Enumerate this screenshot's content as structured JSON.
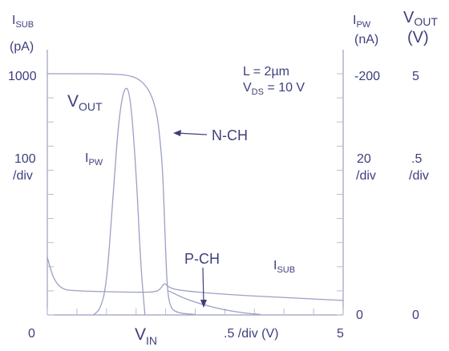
{
  "chart_data": {
    "type": "line",
    "x": {
      "label_main": "V",
      "label_sub": "IN",
      "range": [
        0,
        5
      ],
      "unit_text": ".5 /div (V)",
      "left_tick": "0",
      "right_tick": "5"
    },
    "left_axis": {
      "label": "I",
      "label_sub": "SUB",
      "unit": "(pA)",
      "top_tick": "1000",
      "scale_value": "100",
      "scale_unit": "/div",
      "range": [
        0,
        1000
      ]
    },
    "right_axis_1": {
      "label": "I",
      "label_sub": "PW",
      "unit": "(nA)",
      "top_tick": "-200",
      "scale_value": "20",
      "scale_unit": "/div",
      "bottom_tick": "0",
      "range": [
        0,
        -200
      ]
    },
    "right_axis_2": {
      "label": "V",
      "label_sub": "OUT",
      "unit": "(V)",
      "top_tick": "5",
      "scale_value": ".5",
      "scale_unit": "/div",
      "bottom_tick": "0",
      "range": [
        0,
        5
      ]
    },
    "conditions": {
      "line1": "L = 2µm",
      "line2_main": "V",
      "line2_sub": "DS",
      "line2_rest": " = 10 V"
    },
    "curve_labels": {
      "vout_main": "V",
      "vout_sub": "OUT",
      "ipw_main": "I",
      "ipw_sub": "PW",
      "isub_main": "I",
      "isub_sub": "SUB",
      "nch": "N-CH",
      "pch": "P-CH"
    },
    "series": [
      {
        "name": "VOUT",
        "axis": "right_axis_2",
        "points": [
          [
            0,
            5
          ],
          [
            1,
            5
          ],
          [
            1.4,
            4.97
          ],
          [
            1.6,
            4.85
          ],
          [
            1.75,
            4.6
          ],
          [
            1.85,
            4.2
          ],
          [
            1.9,
            3.7
          ],
          [
            1.95,
            3.0
          ],
          [
            1.98,
            2.0
          ],
          [
            2.0,
            1.3
          ],
          [
            2.03,
            0.5
          ],
          [
            2.08,
            0.15
          ],
          [
            2.2,
            0.04
          ],
          [
            2.5,
            0.01
          ]
        ]
      },
      {
        "name": "IPW",
        "axis": "right_axis_1",
        "points": [
          [
            0.78,
            0
          ],
          [
            0.9,
            -5
          ],
          [
            1.0,
            -25
          ],
          [
            1.1,
            -90
          ],
          [
            1.2,
            -160
          ],
          [
            1.3,
            -190
          ],
          [
            1.4,
            -185
          ],
          [
            1.5,
            -120
          ],
          [
            1.58,
            -40
          ],
          [
            1.65,
            0
          ]
        ]
      },
      {
        "name": "ISUB (N-CH)",
        "axis": "left_axis",
        "points": [
          [
            0,
            240
          ],
          [
            0.1,
            150
          ],
          [
            0.25,
            105
          ],
          [
            0.5,
            100
          ],
          [
            1.0,
            96
          ],
          [
            1.5,
            94
          ],
          [
            1.8,
            95
          ],
          [
            1.9,
            103
          ],
          [
            1.98,
            135
          ],
          [
            2.05,
            115
          ],
          [
            2.2,
            102
          ],
          [
            3,
            85
          ],
          [
            4,
            72
          ],
          [
            5,
            60
          ]
        ]
      },
      {
        "name": "ISUB (P-CH)",
        "axis": "left_axis",
        "points": [
          [
            2.05,
            100
          ],
          [
            2.3,
            70
          ],
          [
            2.6,
            45
          ],
          [
            3.0,
            20
          ],
          [
            3.4,
            6
          ],
          [
            3.6,
            2
          ]
        ]
      }
    ]
  },
  "colors": {
    "curve": "#9aa0c4",
    "text": "#3d3f7c",
    "axis": "#9a9fbd"
  }
}
